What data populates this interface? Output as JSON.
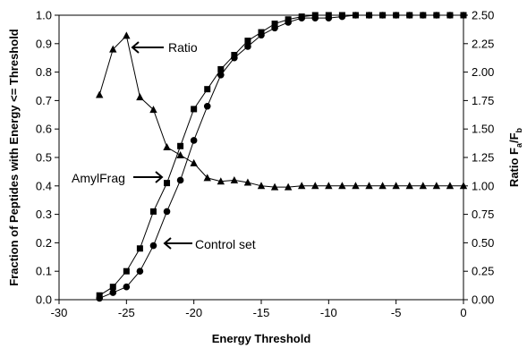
{
  "chart_data": {
    "type": "line",
    "xlabel": "Energy Threshold",
    "ylabel": "Fraction of Peptides with Energy <= Threshold",
    "y2label": {
      "prefix": "Ratio F",
      "sub_a": "a",
      "mid": "/F",
      "sub_b": "b"
    },
    "xlim": [
      -30,
      0
    ],
    "ylim": [
      0,
      1.0
    ],
    "y2lim": [
      0,
      2.5
    ],
    "x_ticks": [
      "-30",
      "-25",
      "-20",
      "-15",
      "-10",
      "-5",
      "0"
    ],
    "y_ticks": [
      "0.0",
      "0.1",
      "0.2",
      "0.3",
      "0.4",
      "0.5",
      "0.6",
      "0.7",
      "0.8",
      "0.9",
      "1.0"
    ],
    "y2_ticks": [
      "0.00",
      "0.25",
      "0.50",
      "0.75",
      "1.00",
      "1.25",
      "1.50",
      "1.75",
      "2.00",
      "2.25",
      "2.50"
    ],
    "grid": false,
    "series": [
      {
        "name": "AmylFrag",
        "axis": "left",
        "marker": "square",
        "x": [
          -27,
          -26,
          -25,
          -24,
          -23,
          -22,
          -21,
          -20,
          -19,
          -18,
          -17,
          -16,
          -15,
          -14,
          -13,
          -12,
          -11,
          -10,
          -9,
          -8,
          -7,
          -6,
          -5,
          -4,
          -3,
          -2,
          -1,
          0
        ],
        "y": [
          0.015,
          0.045,
          0.1,
          0.18,
          0.31,
          0.41,
          0.54,
          0.67,
          0.74,
          0.81,
          0.86,
          0.91,
          0.94,
          0.97,
          0.985,
          0.995,
          1.0,
          1.0,
          1.0,
          1.0,
          1.0,
          1.0,
          1.0,
          1.0,
          1.0,
          1.0,
          1.0,
          1.0
        ]
      },
      {
        "name": "Control set",
        "axis": "left",
        "marker": "circle",
        "x": [
          -27,
          -26,
          -25,
          -24,
          -23,
          -22,
          -21,
          -20,
          -19,
          -18,
          -17,
          -16,
          -15,
          -14,
          -13,
          -12,
          -11,
          -10,
          -9,
          -8,
          -7,
          -6,
          -5,
          -4,
          -3,
          -2,
          -1,
          0
        ],
        "y": [
          0.005,
          0.025,
          0.045,
          0.1,
          0.19,
          0.31,
          0.42,
          0.56,
          0.68,
          0.79,
          0.85,
          0.89,
          0.93,
          0.955,
          0.975,
          0.99,
          0.99,
          0.99,
          0.995,
          1.0,
          1.0,
          1.0,
          1.0,
          1.0,
          1.0,
          1.0,
          1.0,
          1.0
        ]
      },
      {
        "name": "Ratio",
        "axis": "right",
        "marker": "triangle",
        "x": [
          -27,
          -26,
          -25,
          -24,
          -23,
          -22,
          -21,
          -20,
          -19,
          -18,
          -17,
          -16,
          -15,
          -14,
          -13,
          -12,
          -11,
          -10,
          -9,
          -8,
          -7,
          -6,
          -5,
          -4,
          -3,
          -2,
          -1,
          0
        ],
        "y": [
          1.8,
          2.2,
          2.32,
          1.78,
          1.67,
          1.34,
          1.27,
          1.2,
          1.07,
          1.04,
          1.05,
          1.03,
          1.0,
          0.99,
          0.99,
          1.0,
          1.0,
          1.0,
          1.0,
          1.0,
          1.0,
          1.0,
          1.0,
          1.0,
          1.0,
          1.0,
          1.0,
          1.0
        ]
      }
    ],
    "annotations": [
      {
        "text": "Ratio",
        "target_x": -25,
        "target_y": 0.93
      },
      {
        "text": "AmylFrag",
        "target_x": -22.4,
        "target_y": 0.415
      },
      {
        "text": "Control set",
        "target_x": -22.0,
        "target_y": 0.2
      }
    ]
  }
}
